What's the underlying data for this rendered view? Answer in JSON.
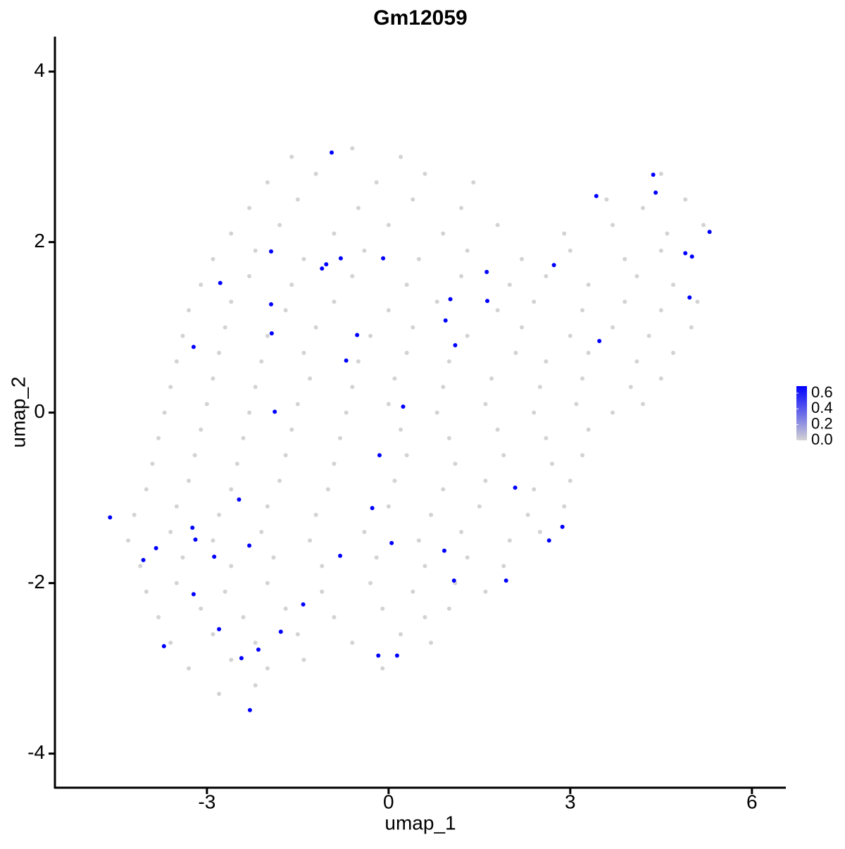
{
  "chart_data": {
    "type": "scatter",
    "title": "Gm12059",
    "x_label": "umap_1",
    "y_label": "umap_2",
    "xlim": [
      -5.51,
      6.56
    ],
    "ylim": [
      -4.4,
      4.41
    ],
    "xticks": [
      -3,
      0,
      3,
      6
    ],
    "yticks": [
      -4,
      -2,
      0,
      2,
      4
    ],
    "colorbar": {
      "colors": [
        "#d3d3d3",
        "#0000ff"
      ],
      "lim": [
        0,
        0.69
      ],
      "ticks": [
        {
          "value": 0,
          "label": "0.0"
        },
        0.2,
        0.4,
        0.6
      ]
    },
    "series": [
      {
        "x": [
          -1.6,
          -0.6,
          0.2,
          -2.0,
          -1.2,
          -0.2,
          0.6,
          1.4,
          4.5,
          -2.3,
          -1.5,
          -0.5,
          0.4,
          1.2,
          3.6,
          4.2,
          4.9,
          -2.6,
          -1.8,
          -0.9,
          0.0,
          0.9,
          1.8,
          2.9,
          3.7,
          4.6,
          5.2,
          -2.9,
          -2.2,
          -1.4,
          -0.4,
          0.5,
          1.3,
          2.2,
          3.0,
          3.9,
          4.5,
          -3.1,
          -2.3,
          -1.6,
          -0.6,
          0.3,
          1.2,
          2.0,
          2.6,
          3.3,
          4.1,
          4.7,
          -3.3,
          -2.6,
          -1.7,
          -0.9,
          0.0,
          0.8,
          1.8,
          2.4,
          3.2,
          3.9,
          4.5,
          5.1,
          -3.4,
          -2.7,
          -2.0,
          -1.2,
          -0.3,
          0.4,
          1.3,
          2.2,
          3.0,
          3.7,
          4.3,
          5.0,
          -3.5,
          -2.8,
          -2.1,
          -1.4,
          -0.5,
          0.3,
          1.0,
          2.1,
          2.6,
          3.3,
          4.1,
          4.7,
          -3.6,
          -2.9,
          -2.2,
          -1.3,
          -0.6,
          0.1,
          0.9,
          1.7,
          2.5,
          3.2,
          4.0,
          4.5,
          -3.7,
          -3.0,
          -2.3,
          -1.5,
          -0.7,
          0.0,
          0.8,
          1.6,
          2.4,
          3.1,
          3.7,
          4.2,
          -3.8,
          -3.1,
          -2.4,
          -1.6,
          -0.8,
          0.2,
          1.0,
          1.8,
          2.6,
          3.3,
          -3.9,
          -3.2,
          -2.5,
          -1.7,
          -0.9,
          0.3,
          1.1,
          1.9,
          2.7,
          3.2,
          -4.0,
          -3.3,
          -2.6,
          -1.8,
          -1.0,
          0.1,
          0.9,
          1.6,
          2.4,
          3.0,
          -4.2,
          -3.5,
          -2.8,
          -2.0,
          -1.2,
          0.0,
          0.7,
          1.5,
          2.3,
          2.9,
          -4.3,
          -3.6,
          -2.9,
          -2.1,
          -1.3,
          -0.4,
          0.5,
          1.2,
          2.0,
          2.5,
          -4.1,
          -3.4,
          -2.6,
          -1.9,
          -1.1,
          -0.2,
          0.6,
          1.3,
          1.9,
          -4.0,
          -3.5,
          -2.7,
          -2.0,
          -1.1,
          -0.3,
          0.4,
          1.1,
          1.6,
          -3.8,
          -3.1,
          -2.4,
          -1.7,
          -0.9,
          -0.1,
          0.6,
          1.0,
          -3.6,
          -2.9,
          -2.2,
          -1.5,
          -0.6,
          0.2,
          0.7,
          -3.3,
          -2.6,
          -2.0,
          -1.4,
          -0.1,
          -2.8,
          -2.2
        ],
        "y": [
          3.0,
          3.1,
          3.0,
          2.7,
          2.8,
          2.7,
          2.8,
          2.7,
          2.8,
          2.4,
          2.5,
          2.4,
          2.5,
          2.4,
          2.5,
          2.4,
          2.5,
          2.1,
          2.2,
          2.1,
          2.2,
          2.1,
          2.2,
          2.1,
          2.2,
          2.1,
          2.2,
          1.8,
          1.9,
          1.8,
          1.9,
          1.8,
          1.9,
          1.8,
          1.9,
          1.8,
          1.9,
          1.5,
          1.6,
          1.5,
          1.6,
          1.5,
          1.6,
          1.5,
          1.6,
          1.5,
          1.6,
          1.5,
          1.2,
          1.3,
          1.2,
          1.3,
          1.2,
          1.3,
          1.2,
          1.3,
          1.2,
          1.3,
          1.2,
          1.3,
          0.9,
          1.0,
          0.9,
          1.0,
          0.9,
          1.0,
          0.9,
          1.0,
          0.9,
          1.0,
          0.9,
          1.0,
          0.6,
          0.7,
          0.6,
          0.7,
          0.6,
          0.7,
          0.6,
          0.7,
          0.6,
          0.7,
          0.6,
          0.7,
          0.3,
          0.4,
          0.3,
          0.4,
          0.3,
          0.4,
          0.3,
          0.4,
          0.3,
          0.4,
          0.3,
          0.4,
          0.0,
          0.1,
          0.0,
          0.1,
          0.0,
          0.1,
          0.0,
          0.1,
          0.0,
          0.1,
          0.0,
          0.1,
          -0.3,
          -0.2,
          -0.3,
          -0.2,
          -0.3,
          -0.2,
          -0.3,
          -0.2,
          -0.3,
          -0.2,
          -0.6,
          -0.5,
          -0.6,
          -0.5,
          -0.6,
          -0.5,
          -0.6,
          -0.5,
          -0.6,
          -0.5,
          -0.9,
          -0.8,
          -0.9,
          -0.8,
          -0.9,
          -0.8,
          -0.9,
          -0.8,
          -0.9,
          -0.8,
          -1.2,
          -1.1,
          -1.2,
          -1.1,
          -1.2,
          -1.1,
          -1.2,
          -1.1,
          -1.2,
          -1.1,
          -1.5,
          -1.4,
          -1.5,
          -1.4,
          -1.5,
          -1.4,
          -1.5,
          -1.4,
          -1.5,
          -1.4,
          -1.8,
          -1.7,
          -1.8,
          -1.7,
          -1.8,
          -1.7,
          -1.8,
          -1.7,
          -1.8,
          -2.1,
          -2.0,
          -2.1,
          -2.0,
          -2.1,
          -2.0,
          -2.1,
          -2.0,
          -2.1,
          -2.4,
          -2.3,
          -2.4,
          -2.3,
          -2.4,
          -2.3,
          -2.4,
          -2.3,
          -2.7,
          -2.6,
          -2.7,
          -2.6,
          -2.7,
          -2.6,
          -2.7,
          -3.0,
          -2.9,
          -3.0,
          -2.9,
          -3.0,
          -3.3,
          -3.2
        ],
        "values": [
          0,
          0,
          0,
          0,
          0,
          0,
          0,
          0,
          0,
          0,
          0,
          0,
          0,
          0,
          0,
          0,
          0,
          0,
          0,
          0,
          0,
          0,
          0,
          0,
          0,
          0,
          0,
          0,
          0,
          0,
          0,
          0,
          0,
          0,
          0,
          0,
          0,
          0,
          0,
          0,
          0,
          0,
          0,
          0,
          0,
          0,
          0,
          0,
          0,
          0,
          0,
          0,
          0,
          0,
          0,
          0,
          0,
          0,
          0,
          0,
          0,
          0,
          0,
          0,
          0,
          0,
          0,
          0,
          0,
          0,
          0,
          0,
          0,
          0,
          0,
          0,
          0,
          0,
          0,
          0,
          0,
          0,
          0,
          0,
          0,
          0,
          0,
          0,
          0,
          0,
          0,
          0,
          0,
          0,
          0,
          0,
          0,
          0,
          0,
          0,
          0,
          0,
          0,
          0,
          0,
          0,
          0,
          0,
          0,
          0,
          0,
          0,
          0,
          0,
          0,
          0,
          0,
          0,
          0,
          0,
          0,
          0,
          0,
          0,
          0,
          0,
          0,
          0,
          0,
          0,
          0,
          0,
          0,
          0,
          0,
          0,
          0,
          0,
          0,
          0,
          0,
          0,
          0,
          0,
          0,
          0,
          0,
          0,
          0,
          0,
          0,
          0,
          0,
          0,
          0,
          0,
          0,
          0,
          0,
          0,
          0,
          0,
          0,
          0,
          0,
          0,
          0,
          0,
          0,
          0,
          0,
          0,
          0,
          0,
          0,
          0,
          0,
          0,
          0,
          0,
          0,
          0,
          0,
          0,
          0,
          0,
          0,
          0,
          0,
          0,
          0,
          0,
          0,
          0,
          0,
          0,
          0,
          0
        ]
      },
      {
        "x": [
          -0.94,
          4.37,
          4.41,
          3.43,
          5.3,
          -1.94,
          -0.79,
          -0.09,
          -1.03,
          -1.1,
          4.9,
          5.01,
          2.73,
          1.62,
          -2.78,
          1.02,
          1.63,
          4.97,
          -1.94,
          0.94,
          -0.52,
          -1.93,
          1.1,
          3.48,
          -3.22,
          -0.7,
          0.24,
          -1.88,
          -0.15,
          2.09,
          -2.47,
          -0.27,
          -4.6,
          -3.24,
          2.87,
          -3.19,
          2.65,
          -2.3,
          0.05,
          -3.84,
          0.92,
          -2.88,
          -0.8,
          -4.05,
          1.94,
          1.08,
          -3.22,
          -1.41,
          -2.8,
          -1.78,
          -3.71,
          -2.15,
          -2.43,
          -0.17,
          0.14,
          -2.29
        ],
        "y": [
          3.05,
          2.79,
          2.58,
          2.54,
          2.12,
          1.89,
          1.81,
          1.81,
          1.74,
          1.69,
          1.87,
          1.83,
          1.73,
          1.65,
          1.52,
          1.33,
          1.31,
          1.35,
          1.27,
          1.08,
          0.91,
          0.93,
          0.79,
          0.84,
          0.77,
          0.61,
          0.07,
          0.01,
          -0.5,
          -0.88,
          -1.02,
          -1.12,
          -1.23,
          -1.35,
          -1.34,
          -1.49,
          -1.5,
          -1.56,
          -1.53,
          -1.59,
          -1.62,
          -1.69,
          -1.68,
          -1.73,
          -1.97,
          -1.97,
          -2.13,
          -2.25,
          -2.54,
          -2.57,
          -2.74,
          -2.78,
          -2.88,
          -2.85,
          -2.85,
          -3.49
        ],
        "values": [
          0.69,
          0.69,
          0.69,
          0.69,
          0.69,
          0.69,
          0.69,
          0.69,
          0.69,
          0.69,
          0.69,
          0.69,
          0.69,
          0.69,
          0.69,
          0.69,
          0.69,
          0.69,
          0.69,
          0.69,
          0.69,
          0.69,
          0.69,
          0.69,
          0.69,
          0.69,
          0.69,
          0.69,
          0.69,
          0.69,
          0.69,
          0.69,
          0.69,
          0.69,
          0.69,
          0.69,
          0.69,
          0.69,
          0.69,
          0.69,
          0.69,
          0.69,
          0.69,
          0.69,
          0.69,
          0.69,
          0.69,
          0.69,
          0.69,
          0.69,
          0.69,
          0.69,
          0.69,
          0.69,
          0.69,
          0.69
        ]
      }
    ]
  }
}
